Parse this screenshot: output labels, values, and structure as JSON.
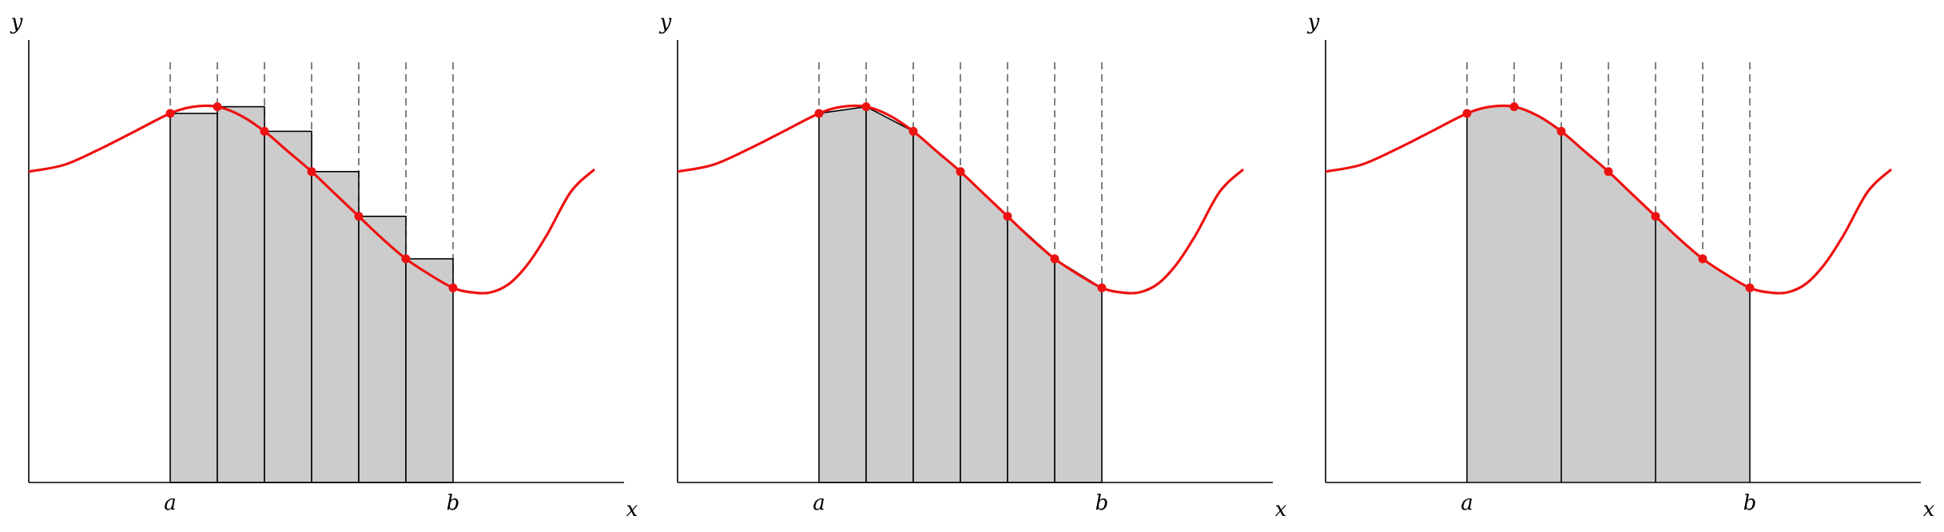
{
  "figure": {
    "colors": {
      "curve": "#ee1111",
      "fill": "#cccccc",
      "axis": "#000000",
      "dash": "#808080"
    }
  },
  "chart_data": [
    {
      "type": "area",
      "method": "rectangles",
      "xlabel": "x",
      "ylabel": "y",
      "xtick_labels": [
        "a",
        "b"
      ],
      "a": 3,
      "b": 9,
      "n": 6,
      "xlim": [
        0,
        12.6
      ],
      "ylim": [
        0,
        10
      ],
      "curve": {
        "x": [
          0.0,
          0.75,
          1.5,
          2.25,
          3.0,
          3.5,
          4.0,
          4.5,
          5.0,
          5.5,
          6.0,
          6.5,
          7.0,
          7.5,
          8.0,
          8.5,
          9.0,
          9.4,
          9.8,
          10.2,
          10.6,
          11.0,
          11.5,
          12.0
        ],
        "y": [
          6.95,
          7.1,
          7.45,
          7.85,
          8.25,
          8.4,
          8.4,
          8.2,
          7.85,
          7.4,
          6.95,
          6.45,
          5.95,
          5.45,
          5.0,
          4.65,
          4.35,
          4.25,
          4.25,
          4.45,
          4.9,
          5.55,
          6.5,
          7.0
        ]
      },
      "points": {
        "x": [
          3,
          4,
          5,
          6,
          7,
          8,
          9
        ],
        "y": [
          8.25,
          8.4,
          7.85,
          6.95,
          5.95,
          5.0,
          4.35
        ]
      },
      "bars": {
        "x_left": [
          3,
          4,
          5,
          6,
          7,
          8
        ],
        "width": 1,
        "height": [
          8.25,
          8.4,
          7.85,
          6.95,
          5.95,
          5.0
        ]
      }
    },
    {
      "type": "area",
      "method": "trapezoids",
      "xlabel": "x",
      "ylabel": "y",
      "xtick_labels": [
        "a",
        "b"
      ],
      "a": 3,
      "b": 9,
      "n": 6,
      "xlim": [
        0,
        12.6
      ],
      "ylim": [
        0,
        10
      ],
      "curve": {
        "x": [
          0.0,
          0.75,
          1.5,
          2.25,
          3.0,
          3.5,
          4.0,
          4.5,
          5.0,
          5.5,
          6.0,
          6.5,
          7.0,
          7.5,
          8.0,
          8.5,
          9.0,
          9.4,
          9.8,
          10.2,
          10.6,
          11.0,
          11.5,
          12.0
        ],
        "y": [
          6.95,
          7.1,
          7.45,
          7.85,
          8.25,
          8.4,
          8.4,
          8.2,
          7.85,
          7.4,
          6.95,
          6.45,
          5.95,
          5.45,
          5.0,
          4.65,
          4.35,
          4.25,
          4.25,
          4.45,
          4.9,
          5.55,
          6.5,
          7.0
        ]
      },
      "points": {
        "x": [
          3,
          4,
          5,
          6,
          7,
          8,
          9
        ],
        "y": [
          8.25,
          8.4,
          7.85,
          6.95,
          5.95,
          5.0,
          4.35
        ]
      },
      "dividers_x": [
        3,
        4,
        5,
        6,
        7,
        8,
        9
      ]
    },
    {
      "type": "area",
      "method": "simpson",
      "xlabel": "x",
      "ylabel": "y",
      "xtick_labels": [
        "a",
        "b"
      ],
      "a": 3,
      "b": 9,
      "n": 6,
      "xlim": [
        0,
        12.6
      ],
      "ylim": [
        0,
        10
      ],
      "curve": {
        "x": [
          0.0,
          0.75,
          1.5,
          2.25,
          3.0,
          3.5,
          4.0,
          4.5,
          5.0,
          5.5,
          6.0,
          6.5,
          7.0,
          7.5,
          8.0,
          8.5,
          9.0,
          9.4,
          9.8,
          10.2,
          10.6,
          11.0,
          11.5,
          12.0
        ],
        "y": [
          6.95,
          7.1,
          7.45,
          7.85,
          8.25,
          8.4,
          8.4,
          8.2,
          7.85,
          7.4,
          6.95,
          6.45,
          5.95,
          5.45,
          5.0,
          4.65,
          4.35,
          4.25,
          4.25,
          4.45,
          4.9,
          5.55,
          6.5,
          7.0
        ]
      },
      "points": {
        "x": [
          3,
          4,
          5,
          6,
          7,
          8,
          9
        ],
        "y": [
          8.25,
          8.4,
          7.85,
          6.95,
          5.95,
          5.0,
          4.35
        ]
      },
      "dividers_x": [
        3,
        5,
        7,
        9
      ]
    }
  ]
}
